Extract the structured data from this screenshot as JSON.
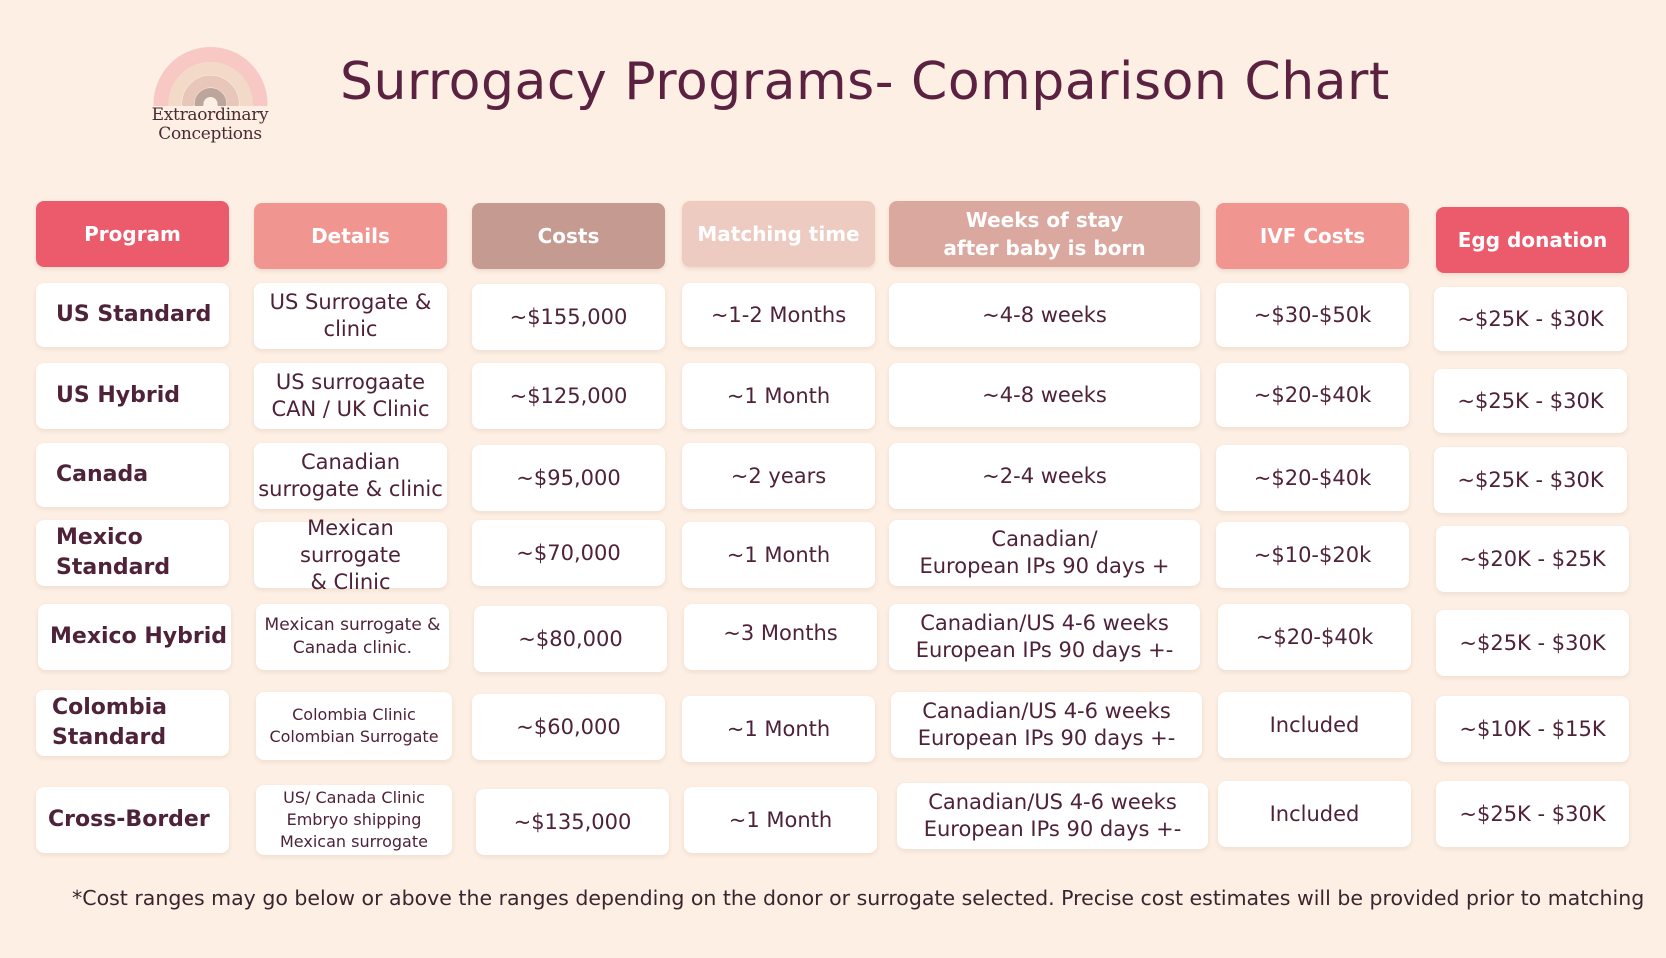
{
  "brand": {
    "name_line1": "Extraordinary",
    "name_line2": "Conceptions",
    "logo": "rainbow-icon"
  },
  "title": "Surrogacy Programs- Comparison Chart",
  "headers": {
    "program": "Program",
    "details": "Details",
    "costs": "Costs",
    "matching": "Matching time",
    "weeks": "Weeks of stay\nafter baby is born",
    "ivf": "IVF Costs",
    "egg": "Egg donation"
  },
  "colors": {
    "background": "#fdefe3",
    "program_header": "#ec5b6c",
    "details_header": "#f19590",
    "costs_header": "#c59a91",
    "matching_header": "#edcbc1",
    "weeks_header": "#daa89f",
    "ivf_header": "#f19590",
    "egg_header": "#ec5b6c",
    "text": "#4e2238"
  },
  "rows": [
    {
      "program": "US Standard",
      "details": "US Surrogate &\nclinic",
      "costs": "~$155,000",
      "matching": "~1-2 Months",
      "weeks": "~4-8  weeks",
      "ivf": "~$30-$50k",
      "egg": "~$25K - $30K"
    },
    {
      "program": "US Hybrid",
      "details": "US surrogaate\nCAN / UK Clinic",
      "costs": "~$125,000",
      "matching": "~1 Month",
      "weeks": "~4-8 weeks",
      "ivf": "~$20-$40k",
      "egg": "~$25K - $30K"
    },
    {
      "program": "Canada",
      "details": "Canadian\nsurrogate & clinic",
      "costs": "~$95,000",
      "matching": "~2 years",
      "weeks": "~2-4 weeks",
      "ivf": "~$20-$40k",
      "egg": "~$25K - $30K"
    },
    {
      "program": "Mexico\nStandard",
      "details": "Mexican surrogate\n& Clinic",
      "costs": "~$70,000",
      "matching": "~1 Month",
      "weeks": "Canadian/\nEuropean IPs 90 days +",
      "ivf": "~$10-$20k",
      "egg": "~$20K - $25K"
    },
    {
      "program": "Mexico Hybrid",
      "details": "Mexican surrogate &\nCanada clinic.",
      "costs": "~$80,000",
      "matching": "~3 Months",
      "weeks": "Canadian/US 4-6 weeks\nEuropean IPs 90 days +-",
      "ivf": "~$20-$40k",
      "egg": "~$25K - $30K"
    },
    {
      "program": "Colombia\nStandard",
      "details": "Colombia Clinic\nColombian Surrogate",
      "costs": "~$60,000",
      "matching": "~1 Month",
      "weeks": "Canadian/US 4-6 weeks\nEuropean IPs 90 days +-",
      "ivf": "Included",
      "egg": "~$10K - $15K"
    },
    {
      "program": "Cross-Border",
      "details": "US/ Canada Clinic\nEmbryo shipping\nMexican surrogate",
      "costs": "~$135,000",
      "matching": "~1 Month",
      "weeks": "Canadian/US 4-6 weeks\nEuropean IPs 90 days +-",
      "ivf": "Included",
      "egg": "~$25K - $30K"
    }
  ],
  "footnote": "*Cost ranges may go below or above the ranges depending on the donor or surrogate selected. Precise cost estimates will be provided prior to matching"
}
